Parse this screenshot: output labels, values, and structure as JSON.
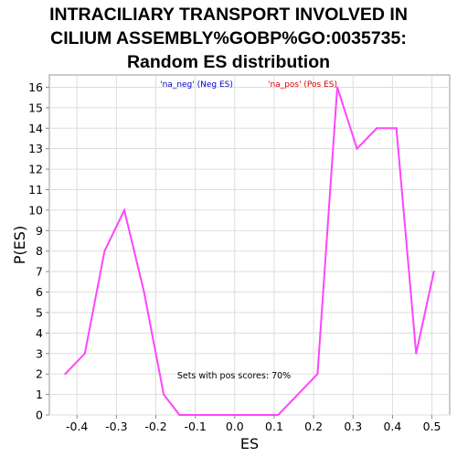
{
  "chart_data": {
    "type": "line",
    "title_lines": [
      "INTRACILIARY TRANSPORT INVOLVED IN",
      "CILIUM ASSEMBLY%GOBP%GO:0035735:",
      "Random ES distribution"
    ],
    "xlabel": "ES",
    "ylabel": "P(ES)",
    "xlim": [
      -0.47,
      0.545
    ],
    "ylim": [
      0,
      16.6
    ],
    "xticks": [
      -0.4,
      -0.3,
      -0.2,
      -0.1,
      0.0,
      0.1,
      0.2,
      0.3,
      0.4,
      0.5
    ],
    "xtick_labels": [
      "-0.4",
      "-0.3",
      "-0.2",
      "-0.1",
      "0.0",
      "0.1",
      "0.2",
      "0.3",
      "0.4",
      "0.5"
    ],
    "yticks": [
      0,
      1,
      2,
      3,
      4,
      5,
      6,
      7,
      8,
      9,
      10,
      11,
      12,
      13,
      14,
      15,
      16
    ],
    "ytick_labels": [
      "0",
      "1",
      "2",
      "3",
      "4",
      "5",
      "6",
      "7",
      "8",
      "9",
      "10",
      "11",
      "12",
      "13",
      "14",
      "15",
      "16"
    ],
    "series": [
      {
        "name": "Random ES",
        "color": "#ff44ff",
        "x": [
          -0.43,
          -0.38,
          -0.33,
          -0.28,
          -0.23,
          -0.18,
          -0.14,
          -0.09,
          -0.04,
          0.01,
          0.06,
          0.11,
          0.16,
          0.21,
          0.26,
          0.31,
          0.36,
          0.41,
          0.46,
          0.505
        ],
        "y": [
          2,
          3,
          8,
          10,
          6,
          1,
          0,
          0,
          0,
          0,
          0,
          0,
          1,
          2,
          16,
          13,
          14,
          14,
          3,
          7
        ]
      }
    ],
    "legend": [
      {
        "label": "'na_neg' (Neg ES)",
        "color": "#0000cc"
      },
      {
        "label": "'na_pos' (Pos ES)",
        "color": "#dd0000"
      }
    ],
    "annotation": "Sets with pos scores: 70%"
  }
}
